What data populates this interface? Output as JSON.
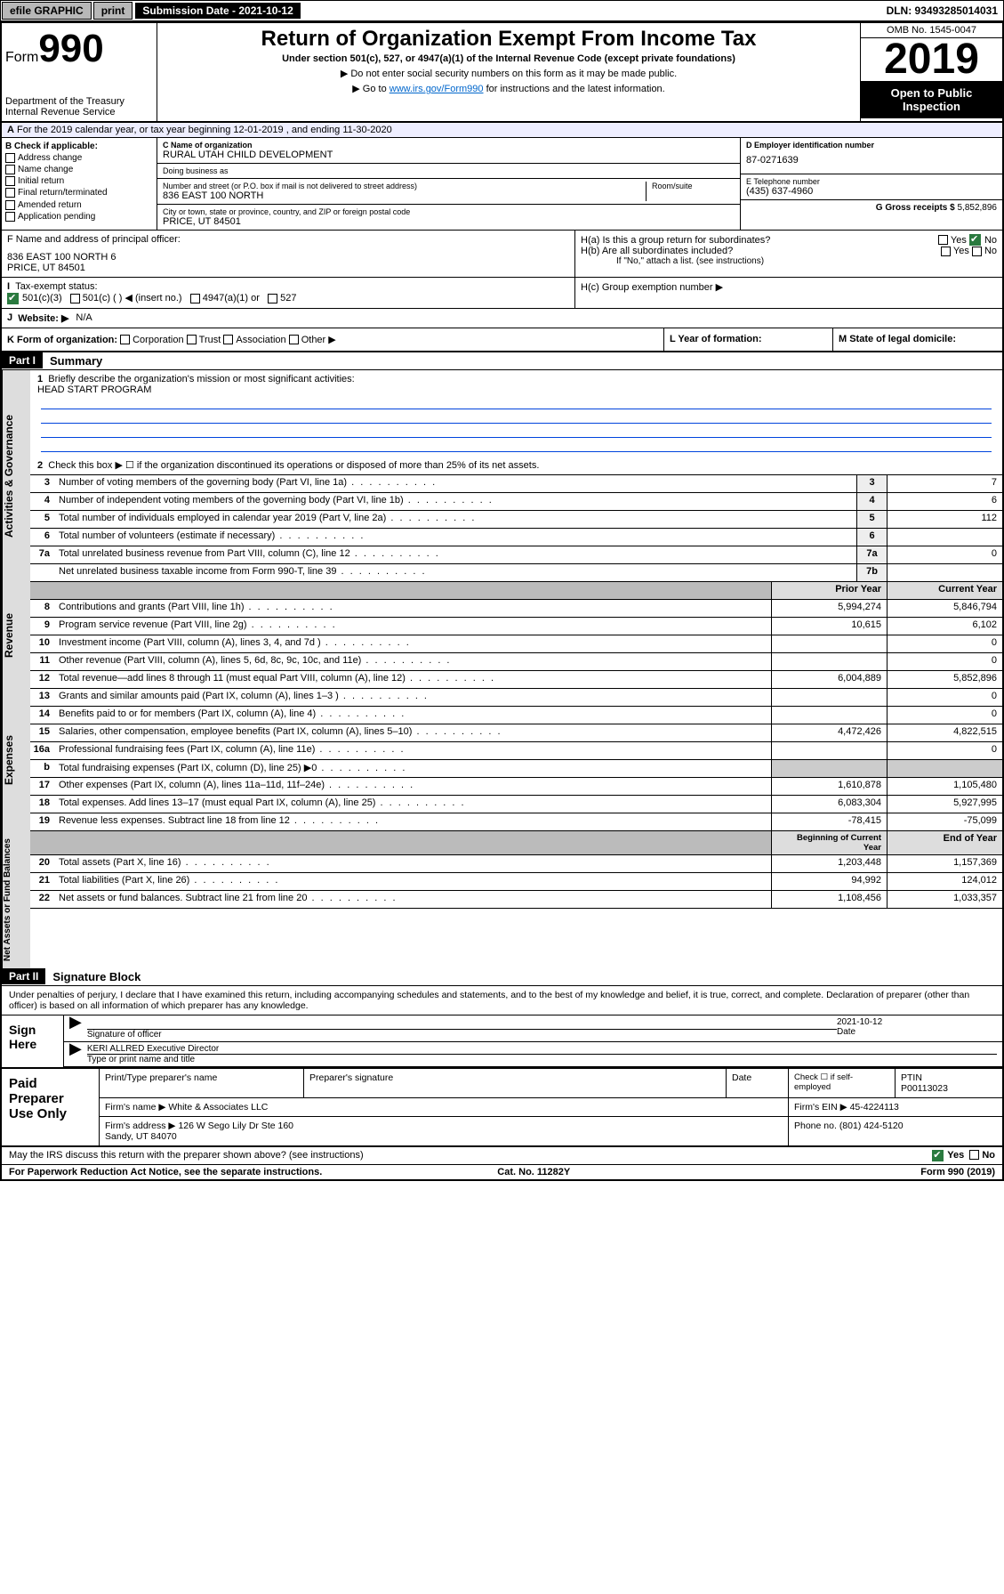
{
  "topbar": {
    "efile": "efile GRAPHIC",
    "print": "print",
    "subdate_label": "Submission Date - 2021-10-12",
    "dln": "DLN: 93493285014031"
  },
  "header": {
    "form_label": "Form",
    "form_number": "990",
    "dept": "Department of the Treasury\nInternal Revenue Service",
    "title": "Return of Organization Exempt From Income Tax",
    "subtitle": "Under section 501(c), 527, or 4947(a)(1) of the Internal Revenue Code (except private foundations)",
    "hint1": "▶ Do not enter social security numbers on this form as it may be made public.",
    "hint2_pre": "▶ Go to ",
    "hint2_link": "www.irs.gov/Form990",
    "hint2_post": " for instructions and the latest information.",
    "omb": "OMB No. 1545-0047",
    "year": "2019",
    "open_public": "Open to Public Inspection"
  },
  "period": "For the 2019 calendar year, or tax year beginning 12-01-2019    , and ending 11-30-2020",
  "checkboxes": {
    "header": "B Check if applicable:",
    "items": [
      "Address change",
      "Name change",
      "Initial return",
      "Final return/terminated",
      "Amended return",
      "Application pending"
    ]
  },
  "org": {
    "name_label": "C Name of organization",
    "name": "RURAL UTAH CHILD DEVELOPMENT",
    "dba_label": "Doing business as",
    "dba": "",
    "addr_label": "Number and street (or P.O. box if mail is not delivered to street address)",
    "room_label": "Room/suite",
    "addr": "836 EAST 100 NORTH",
    "city_label": "City or town, state or province, country, and ZIP or foreign postal code",
    "city": "PRICE, UT  84501"
  },
  "right_block": {
    "ein_label": "D Employer identification number",
    "ein": "87-0271639",
    "phone_label": "E Telephone number",
    "phone": "(435) 637-4960",
    "gross_label": "G Gross receipts $",
    "gross": "5,852,896"
  },
  "officer": {
    "label": "F  Name and address of principal officer:",
    "name": "",
    "addr": "836 EAST 100 NORTH 6\nPRICE, UT  84501"
  },
  "h_block": {
    "ha": "H(a)  Is this a group return for subordinates?",
    "hb": "H(b)  Are all subordinates included?",
    "hb_note": "If \"No,\" attach a list. (see instructions)",
    "hc": "H(c)  Group exemption number ▶",
    "yes": "Yes",
    "no": "No"
  },
  "tax_status": {
    "label": "Tax-exempt status:",
    "opt1": "501(c)(3)",
    "opt2": "501(c) (   ) ◀ (insert no.)",
    "opt3": "4947(a)(1) or",
    "opt4": "527"
  },
  "website": {
    "label": "Website: ▶",
    "val": "N/A"
  },
  "row_k": {
    "k": "K Form of organization:",
    "opts": [
      "Corporation",
      "Trust",
      "Association",
      "Other ▶"
    ],
    "l": "L Year of formation:",
    "m": "M State of legal domicile:"
  },
  "part1": {
    "header": "Part I",
    "title": "Summary",
    "q1": "Briefly describe the organization's mission or most significant activities:",
    "mission": "HEAD START PROGRAM",
    "q2": "Check this box ▶ ☐  if the organization discontinued its operations or disposed of more than 25% of its net assets."
  },
  "governance_lines": [
    {
      "n": "3",
      "t": "Number of voting members of the governing body (Part VI, line 1a)",
      "box": "3",
      "v": "7"
    },
    {
      "n": "4",
      "t": "Number of independent voting members of the governing body (Part VI, line 1b)",
      "box": "4",
      "v": "6"
    },
    {
      "n": "5",
      "t": "Total number of individuals employed in calendar year 2019 (Part V, line 2a)",
      "box": "5",
      "v": "112"
    },
    {
      "n": "6",
      "t": "Total number of volunteers (estimate if necessary)",
      "box": "6",
      "v": ""
    },
    {
      "n": "7a",
      "t": "Total unrelated business revenue from Part VIII, column (C), line 12",
      "box": "7a",
      "v": "0"
    },
    {
      "n": "",
      "t": "Net unrelated business taxable income from Form 990-T, line 39",
      "box": "7b",
      "v": ""
    }
  ],
  "two_col_header": {
    "prior": "Prior Year",
    "current": "Current Year"
  },
  "revenue_lines": [
    {
      "n": "8",
      "t": "Contributions and grants (Part VIII, line 1h)",
      "p": "5,994,274",
      "c": "5,846,794"
    },
    {
      "n": "9",
      "t": "Program service revenue (Part VIII, line 2g)",
      "p": "10,615",
      "c": "6,102"
    },
    {
      "n": "10",
      "t": "Investment income (Part VIII, column (A), lines 3, 4, and 7d )",
      "p": "",
      "c": "0"
    },
    {
      "n": "11",
      "t": "Other revenue (Part VIII, column (A), lines 5, 6d, 8c, 9c, 10c, and 11e)",
      "p": "",
      "c": "0"
    },
    {
      "n": "12",
      "t": "Total revenue—add lines 8 through 11 (must equal Part VIII, column (A), line 12)",
      "p": "6,004,889",
      "c": "5,852,896"
    }
  ],
  "expense_lines": [
    {
      "n": "13",
      "t": "Grants and similar amounts paid (Part IX, column (A), lines 1–3 )",
      "p": "",
      "c": "0"
    },
    {
      "n": "14",
      "t": "Benefits paid to or for members (Part IX, column (A), line 4)",
      "p": "",
      "c": "0"
    },
    {
      "n": "15",
      "t": "Salaries, other compensation, employee benefits (Part IX, column (A), lines 5–10)",
      "p": "4,472,426",
      "c": "4,822,515"
    },
    {
      "n": "16a",
      "t": "Professional fundraising fees (Part IX, column (A), line 11e)",
      "p": "",
      "c": "0"
    },
    {
      "n": "b",
      "t": "Total fundraising expenses (Part IX, column (D), line 25) ▶0",
      "p": "GRAY",
      "c": "GRAY"
    },
    {
      "n": "17",
      "t": "Other expenses (Part IX, column (A), lines 11a–11d, 11f–24e)",
      "p": "1,610,878",
      "c": "1,105,480"
    },
    {
      "n": "18",
      "t": "Total expenses. Add lines 13–17 (must equal Part IX, column (A), line 25)",
      "p": "6,083,304",
      "c": "5,927,995"
    },
    {
      "n": "19",
      "t": "Revenue less expenses. Subtract line 18 from line 12",
      "p": "-78,415",
      "c": "-75,099"
    }
  ],
  "net_header": {
    "prior": "Beginning of Current Year",
    "current": "End of Year"
  },
  "net_lines": [
    {
      "n": "20",
      "t": "Total assets (Part X, line 16)",
      "p": "1,203,448",
      "c": "1,157,369"
    },
    {
      "n": "21",
      "t": "Total liabilities (Part X, line 26)",
      "p": "94,992",
      "c": "124,012"
    },
    {
      "n": "22",
      "t": "Net assets or fund balances. Subtract line 21 from line 20",
      "p": "1,108,456",
      "c": "1,033,357"
    }
  ],
  "vtabs": {
    "gov": "Activities & Governance",
    "rev": "Revenue",
    "exp": "Expenses",
    "net": "Net Assets or Fund Balances"
  },
  "part2": {
    "header": "Part II",
    "title": "Signature Block",
    "perjury": "Under penalties of perjury, I declare that I have examined this return, including accompanying schedules and statements, and to the best of my knowledge and belief, it is true, correct, and complete. Declaration of preparer (other than officer) is based on all information of which preparer has any knowledge."
  },
  "sign": {
    "left": "Sign Here",
    "date": "2021-10-12",
    "sig_label": "Signature of officer",
    "date_label": "Date",
    "name": "KERI ALLRED  Executive Director",
    "name_label": "Type or print name and title"
  },
  "paid": {
    "left": "Paid Preparer Use Only",
    "h1": "Print/Type preparer's name",
    "h2": "Preparer's signature",
    "h3": "Date",
    "h4_check": "Check ☐ if self-employed",
    "h5": "PTIN",
    "ptin": "P00113023",
    "firm_label": "Firm's name     ▶",
    "firm": "White & Associates LLC",
    "ein_label": "Firm's EIN ▶",
    "ein": "45-4224113",
    "addr_label": "Firm's address ▶",
    "addr": "126 W Sego Lily Dr Ste 160\nSandy, UT  84070",
    "phone_label": "Phone no.",
    "phone": "(801) 424-5120"
  },
  "footer": {
    "discuss": "May the IRS discuss this return with the preparer shown above? (see instructions)",
    "yes": "Yes",
    "no": "No",
    "paperwork": "For Paperwork Reduction Act Notice, see the separate instructions.",
    "cat": "Cat. No. 11282Y",
    "form": "Form 990 (2019)"
  }
}
